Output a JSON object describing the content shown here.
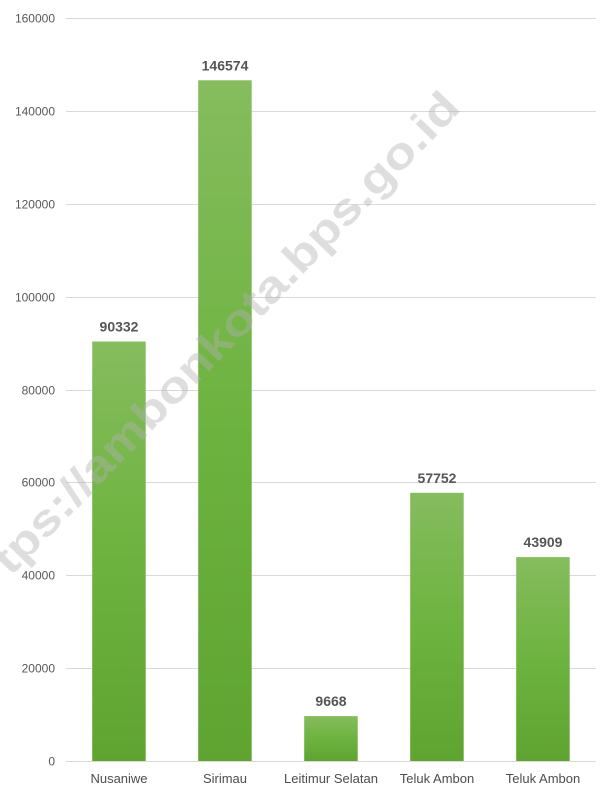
{
  "chart_data": {
    "type": "bar",
    "categories": [
      "Nusaniwe",
      "Sirimau",
      "Leitimur Selatan",
      "Teluk Ambon",
      "Teluk Ambon"
    ],
    "values": [
      90332,
      146574,
      9668,
      57752,
      43909
    ],
    "ylim": [
      0,
      160000
    ],
    "yticks": [
      0,
      20000,
      40000,
      60000,
      80000,
      100000,
      120000,
      140000,
      160000
    ],
    "grid": true,
    "data_labels": true,
    "legend": "none",
    "colors": {
      "bar": "#6db33f",
      "bar_top": "#86bc5e",
      "bar_bottom": "#5fa431",
      "grid": "#d9d9d9"
    }
  },
  "watermark": "tps://ambonkota.bps.go.id"
}
